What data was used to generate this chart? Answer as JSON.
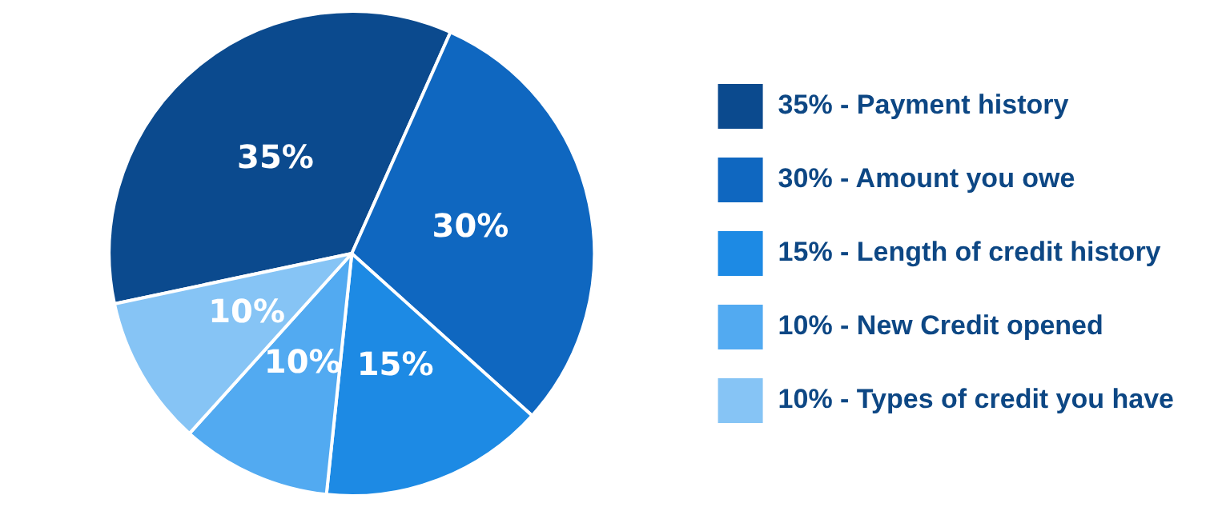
{
  "chart_data": {
    "type": "pie",
    "categories": [
      "35% - Payment history",
      "30% - Amount you owe",
      "15% - Length of credit history",
      "10% - New Credit opened",
      "10% - Types of credit you have"
    ],
    "values": [
      35,
      30,
      15,
      10,
      10
    ],
    "colors": [
      "#0b4a8e",
      "#0f67c0",
      "#1d8ae4",
      "#52aaf1",
      "#86c4f5"
    ],
    "value_labels": [
      "35%",
      "30%",
      "15%",
      "10%",
      "10%"
    ],
    "legend": "right"
  }
}
